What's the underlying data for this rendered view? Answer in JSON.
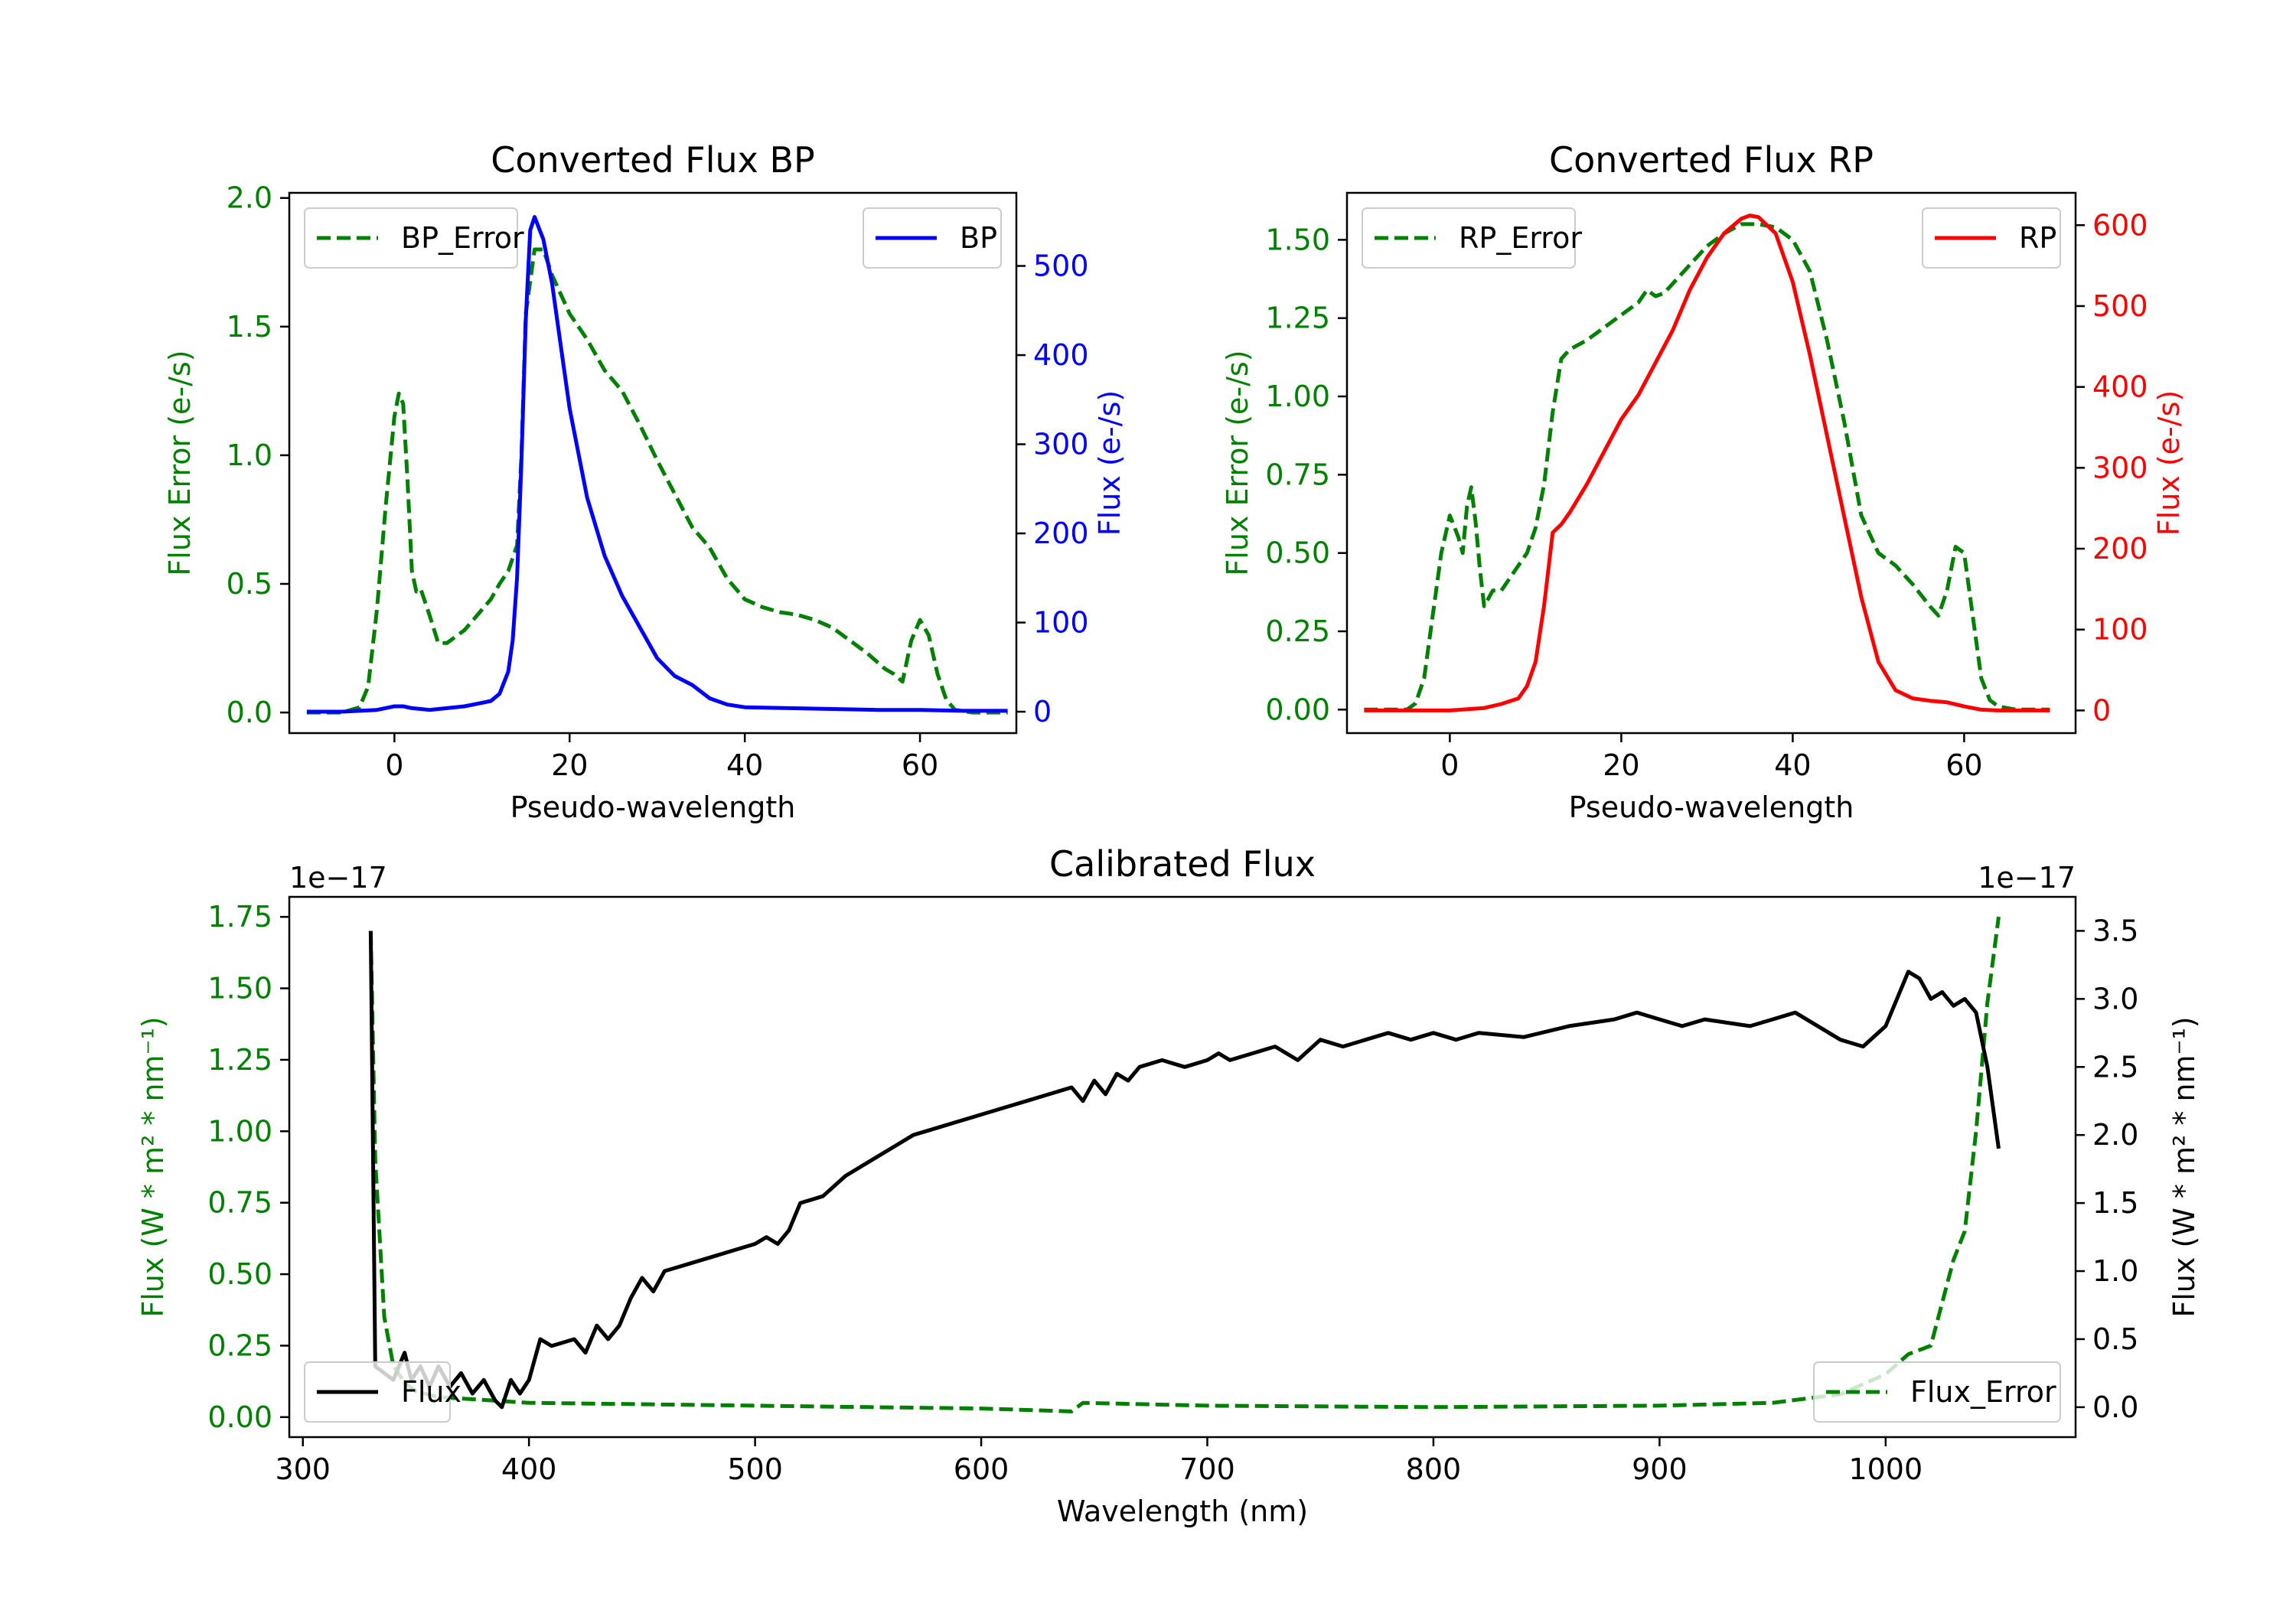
{
  "colors": {
    "green": "#008000",
    "blue": "#0000ff",
    "red": "#ff0000",
    "black": "#000000"
  },
  "chart_data": [
    {
      "id": "bp",
      "type": "line",
      "title": "Converted Flux BP",
      "xlabel": "Pseudo-wavelength",
      "xlim": [
        -12,
        71
      ],
      "xticks": [
        0,
        20,
        40,
        60
      ],
      "xtick_labels": [
        "0",
        "20",
        "40",
        "60"
      ],
      "left_axis": {
        "label": "Flux Error (e-/s)",
        "color": "green",
        "ylim": [
          -0.08,
          2.02
        ],
        "ticks": [
          0.0,
          0.5,
          1.0,
          1.5,
          2.0
        ],
        "tick_labels": [
          "0.0",
          "0.5",
          "1.0",
          "1.5",
          "2.0"
        ]
      },
      "right_axis": {
        "label": "Flux (e-/s)",
        "color": "blue",
        "ylim": [
          -24,
          582
        ],
        "ticks": [
          0,
          100,
          200,
          300,
          400,
          500
        ],
        "tick_labels": [
          "0",
          "100",
          "200",
          "300",
          "400",
          "500"
        ]
      },
      "series": [
        {
          "name": "BP_Error",
          "axis": "left",
          "color": "green",
          "dash": true,
          "x": [
            -10,
            -6,
            -4,
            -3,
            -2,
            -1,
            0,
            0.5,
            1,
            1.5,
            2,
            2.5,
            3,
            4,
            5,
            6,
            8,
            10,
            11,
            12,
            13,
            14,
            14.5,
            15,
            16,
            17,
            18,
            20,
            22,
            24,
            26,
            28,
            30,
            32,
            34,
            36,
            38,
            40,
            42,
            44,
            46,
            48,
            50,
            52,
            54,
            56,
            57,
            58,
            59,
            60,
            61,
            62,
            63,
            64,
            66,
            68,
            70
          ],
          "y": [
            0.0,
            0.0,
            0.02,
            0.1,
            0.4,
            0.8,
            1.15,
            1.24,
            1.2,
            0.9,
            0.55,
            0.47,
            0.48,
            0.38,
            0.27,
            0.27,
            0.32,
            0.4,
            0.44,
            0.5,
            0.55,
            0.65,
            1.0,
            1.55,
            1.8,
            1.8,
            1.7,
            1.55,
            1.45,
            1.33,
            1.25,
            1.12,
            0.98,
            0.85,
            0.72,
            0.64,
            0.52,
            0.44,
            0.41,
            0.39,
            0.38,
            0.36,
            0.33,
            0.28,
            0.23,
            0.17,
            0.15,
            0.12,
            0.28,
            0.36,
            0.3,
            0.15,
            0.05,
            0.01,
            0.0,
            0.0,
            0.0
          ]
        },
        {
          "name": "BP",
          "axis": "right",
          "color": "blue",
          "dash": false,
          "x": [
            -10,
            -6,
            -2,
            0,
            1,
            2,
            3,
            4,
            6,
            8,
            10,
            11,
            12,
            13,
            13.5,
            14,
            14.5,
            15,
            15.5,
            16,
            17,
            18,
            19,
            20,
            22,
            24,
            26,
            28,
            30,
            32,
            34,
            36,
            38,
            40,
            45,
            50,
            55,
            60,
            65,
            70
          ],
          "y": [
            0,
            0,
            2,
            6,
            6,
            4,
            3,
            2,
            4,
            6,
            10,
            12,
            20,
            45,
            80,
            150,
            280,
            440,
            540,
            555,
            530,
            480,
            410,
            340,
            240,
            175,
            130,
            95,
            60,
            40,
            30,
            15,
            8,
            5,
            4,
            3,
            2,
            2,
            1,
            1
          ]
        }
      ],
      "legend": [
        {
          "label": "BP_Error",
          "position": "upper-left"
        },
        {
          "label": "BP",
          "position": "upper-right"
        }
      ]
    },
    {
      "id": "rp",
      "type": "line",
      "title": "Converted Flux RP",
      "xlabel": "Pseudo-wavelength",
      "xlim": [
        -12,
        73
      ],
      "xticks": [
        0,
        20,
        40,
        60
      ],
      "xtick_labels": [
        "0",
        "20",
        "40",
        "60"
      ],
      "left_axis": {
        "label": "Flux Error (e-/s)",
        "color": "green",
        "ylim": [
          -0.075,
          1.65
        ],
        "ticks": [
          0.0,
          0.25,
          0.5,
          0.75,
          1.0,
          1.25,
          1.5
        ],
        "tick_labels": [
          "0.00",
          "0.25",
          "0.50",
          "0.75",
          "1.00",
          "1.25",
          "1.50"
        ]
      },
      "right_axis": {
        "label": "Flux (e-/s)",
        "color": "red",
        "ylim": [
          -28,
          640
        ],
        "ticks": [
          0,
          100,
          200,
          300,
          400,
          500,
          600
        ],
        "tick_labels": [
          "0",
          "100",
          "200",
          "300",
          "400",
          "500",
          "600"
        ]
      },
      "series": [
        {
          "name": "RP_Error",
          "axis": "right_scaled",
          "color": "green",
          "dash": true,
          "x": [
            -10,
            -5,
            -4,
            -3,
            -2,
            -1,
            0,
            1,
            1.5,
            2,
            2.5,
            3,
            3.5,
            4,
            5,
            6,
            7,
            8,
            9,
            10,
            11,
            12,
            13,
            14,
            16,
            18,
            20,
            22,
            23,
            24,
            25,
            26,
            28,
            30,
            32,
            34,
            36,
            38,
            40,
            42,
            44,
            46,
            48,
            50,
            52,
            54,
            56,
            57,
            58,
            59,
            60,
            61,
            62,
            63,
            64,
            66,
            70
          ],
          "y": [
            0.0,
            0.0,
            0.02,
            0.1,
            0.3,
            0.5,
            0.62,
            0.55,
            0.5,
            0.65,
            0.71,
            0.6,
            0.45,
            0.33,
            0.38,
            0.38,
            0.42,
            0.46,
            0.5,
            0.58,
            0.72,
            0.95,
            1.12,
            1.15,
            1.18,
            1.22,
            1.26,
            1.3,
            1.34,
            1.32,
            1.33,
            1.36,
            1.42,
            1.48,
            1.52,
            1.55,
            1.55,
            1.54,
            1.5,
            1.4,
            1.18,
            0.92,
            0.62,
            0.5,
            0.46,
            0.4,
            0.33,
            0.3,
            0.38,
            0.52,
            0.5,
            0.3,
            0.1,
            0.03,
            0.01,
            0.0,
            0.0
          ]
        },
        {
          "name": "RP",
          "axis": "right",
          "color": "red",
          "dash": false,
          "x": [
            -10,
            0,
            4,
            6,
            8,
            9,
            10,
            11,
            12,
            13,
            14,
            16,
            18,
            20,
            22,
            24,
            26,
            28,
            30,
            32,
            34,
            35,
            36,
            37,
            38,
            40,
            42,
            44,
            46,
            48,
            50,
            52,
            54,
            56,
            58,
            60,
            62,
            64,
            66,
            70
          ],
          "y": [
            0,
            0,
            3,
            8,
            15,
            30,
            60,
            130,
            220,
            230,
            245,
            280,
            320,
            360,
            390,
            430,
            470,
            520,
            560,
            590,
            608,
            612,
            610,
            600,
            590,
            530,
            440,
            340,
            240,
            140,
            60,
            25,
            15,
            12,
            10,
            5,
            1,
            0,
            0,
            0
          ]
        }
      ],
      "legend": [
        {
          "label": "RP_Error",
          "position": "upper-left"
        },
        {
          "label": "RP",
          "position": "upper-right"
        }
      ]
    },
    {
      "id": "cal",
      "type": "line",
      "title": "Calibrated Flux",
      "xlabel": "Wavelength (nm)",
      "xlim": [
        294,
        1084
      ],
      "xticks": [
        300,
        400,
        500,
        600,
        700,
        800,
        900,
        1000
      ],
      "xtick_labels": [
        "300",
        "400",
        "500",
        "600",
        "700",
        "800",
        "900",
        "1000"
      ],
      "left_axis": {
        "label": "Flux (W * m² * nm⁻¹)",
        "color": "green",
        "offset_text": "1e−17",
        "ylim": [
          -0.07,
          1.82
        ],
        "ticks": [
          0.0,
          0.25,
          0.5,
          0.75,
          1.0,
          1.25,
          1.5,
          1.75
        ],
        "tick_labels": [
          "0.00",
          "0.25",
          "0.50",
          "0.75",
          "1.00",
          "1.25",
          "1.50",
          "1.75"
        ]
      },
      "right_axis": {
        "label": "Flux (W * m² * nm⁻¹)",
        "color": "black",
        "offset_text": "1e−17",
        "ylim": [
          -0.22,
          3.75
        ],
        "ticks": [
          0.0,
          0.5,
          1.0,
          1.5,
          2.0,
          2.5,
          3.0,
          3.5
        ],
        "tick_labels": [
          "0.0",
          "0.5",
          "1.0",
          "1.5",
          "2.0",
          "2.5",
          "3.0",
          "3.5"
        ]
      },
      "series": [
        {
          "name": "Flux_Error",
          "axis": "left",
          "color": "green",
          "dash": true,
          "x": [
            330,
            332,
            336,
            340,
            345,
            350,
            360,
            380,
            400,
            450,
            500,
            550,
            600,
            620,
            640,
            645,
            700,
            800,
            900,
            950,
            980,
            1000,
            1010,
            1020,
            1025,
            1030,
            1035,
            1040,
            1045,
            1050
          ],
          "y": [
            1.7,
            0.9,
            0.35,
            0.18,
            0.12,
            0.09,
            0.07,
            0.06,
            0.05,
            0.045,
            0.04,
            0.035,
            0.03,
            0.025,
            0.02,
            0.05,
            0.04,
            0.035,
            0.04,
            0.05,
            0.08,
            0.15,
            0.22,
            0.25,
            0.4,
            0.55,
            0.65,
            1.0,
            1.45,
            1.75
          ]
        },
        {
          "name": "Flux",
          "axis": "right",
          "color": "black",
          "dash": false,
          "x": [
            330,
            332,
            340,
            345,
            348,
            352,
            356,
            360,
            365,
            370,
            375,
            380,
            385,
            388,
            392,
            396,
            400,
            405,
            410,
            420,
            425,
            430,
            435,
            440,
            445,
            450,
            455,
            460,
            470,
            480,
            490,
            500,
            505,
            510,
            515,
            520,
            530,
            540,
            550,
            560,
            570,
            580,
            590,
            600,
            610,
            620,
            630,
            640,
            645,
            650,
            655,
            660,
            665,
            670,
            680,
            690,
            700,
            705,
            710,
            720,
            730,
            740,
            750,
            760,
            770,
            780,
            790,
            800,
            810,
            820,
            840,
            860,
            880,
            890,
            900,
            910,
            920,
            940,
            950,
            960,
            980,
            990,
            1000,
            1010,
            1015,
            1020,
            1025,
            1030,
            1035,
            1040,
            1045,
            1050
          ],
          "y": [
            3.5,
            0.3,
            0.2,
            0.4,
            0.2,
            0.3,
            0.15,
            0.3,
            0.15,
            0.25,
            0.1,
            0.2,
            0.05,
            0.0,
            0.2,
            0.1,
            0.2,
            0.5,
            0.45,
            0.5,
            0.4,
            0.6,
            0.5,
            0.6,
            0.8,
            0.95,
            0.85,
            1.0,
            1.05,
            1.1,
            1.15,
            1.2,
            1.25,
            1.2,
            1.3,
            1.5,
            1.55,
            1.7,
            1.8,
            1.9,
            2.0,
            2.05,
            2.1,
            2.15,
            2.2,
            2.25,
            2.3,
            2.35,
            2.25,
            2.4,
            2.3,
            2.45,
            2.4,
            2.5,
            2.55,
            2.5,
            2.55,
            2.6,
            2.55,
            2.6,
            2.65,
            2.55,
            2.7,
            2.65,
            2.7,
            2.75,
            2.7,
            2.75,
            2.7,
            2.75,
            2.72,
            2.8,
            2.85,
            2.9,
            2.85,
            2.8,
            2.85,
            2.8,
            2.85,
            2.9,
            2.7,
            2.65,
            2.8,
            3.2,
            3.15,
            3.0,
            3.05,
            2.95,
            3.0,
            2.9,
            2.5,
            1.9
          ]
        }
      ],
      "legend": [
        {
          "label": "Flux",
          "position": "lower-left"
        },
        {
          "label": "Flux_Error",
          "position": "lower-right"
        }
      ]
    }
  ]
}
